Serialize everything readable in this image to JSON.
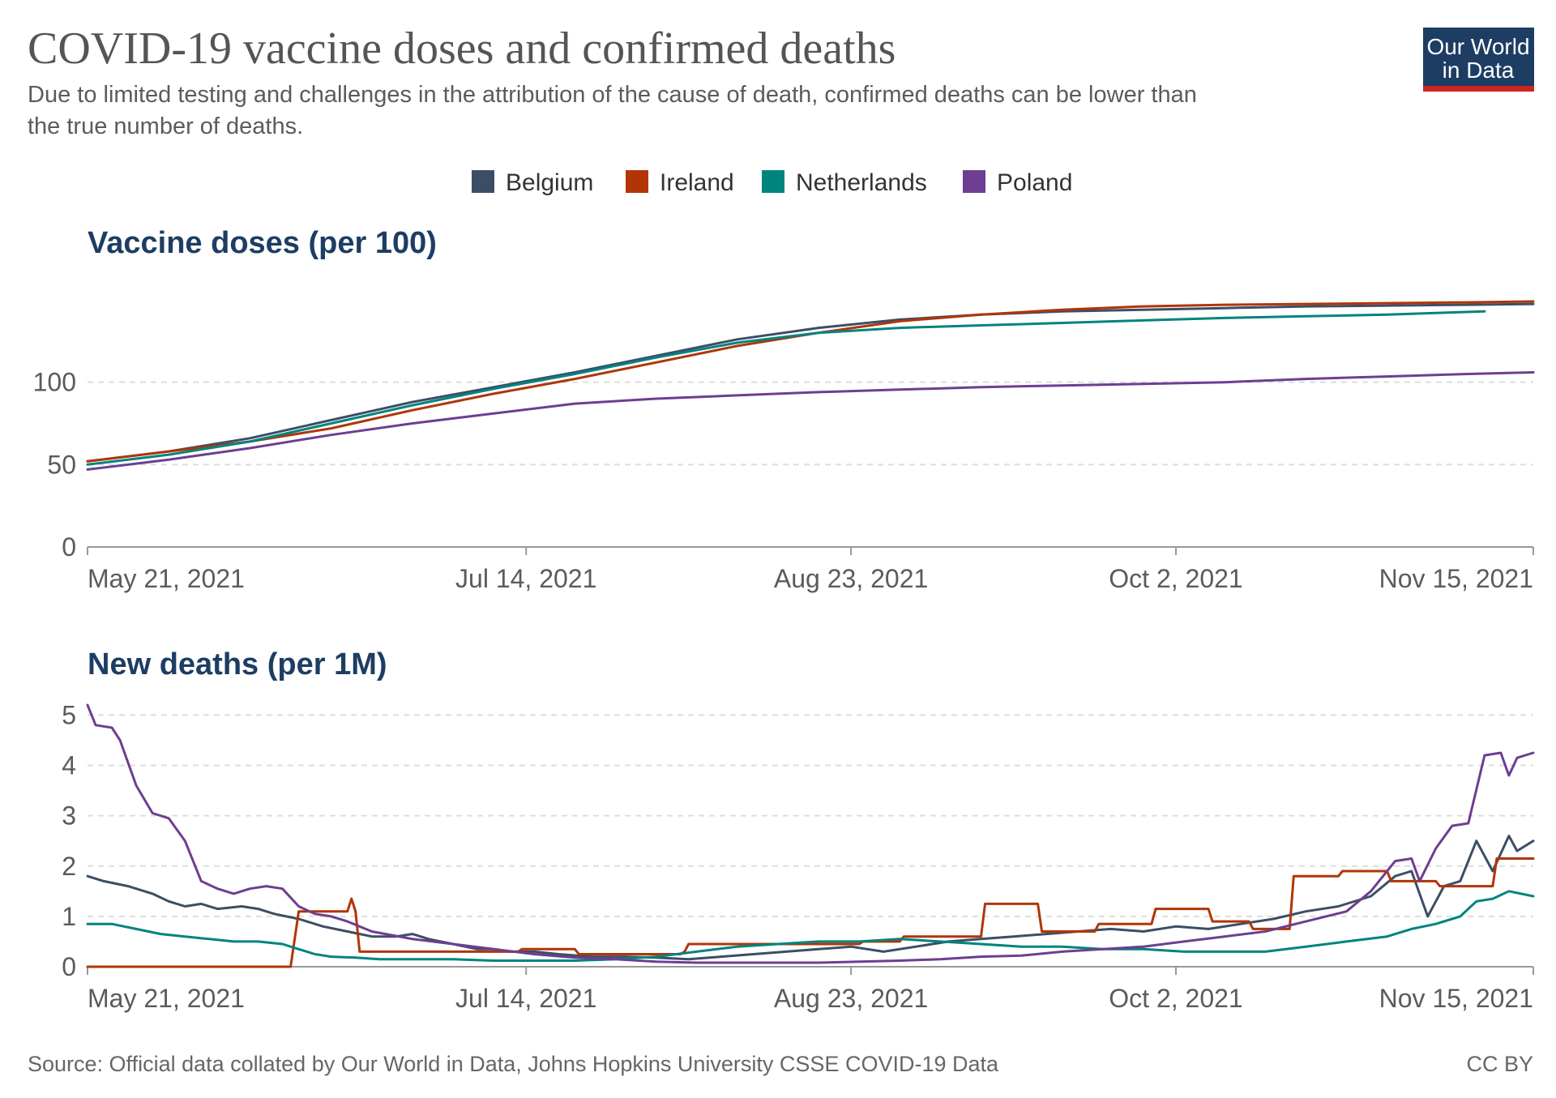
{
  "header": {
    "title": "COVID-19 vaccine doses and confirmed deaths",
    "subtitle_line1": "Due to limited testing and challenges in the attribution of the cause of death, confirmed deaths can be lower than",
    "subtitle_line2": "the true number of deaths."
  },
  "logo": {
    "line1": "Our World",
    "line2": "in Data",
    "bg_color": "#1d3d63",
    "accent_color": "#ce261e"
  },
  "footer": {
    "source": "Source: Official data collated by Our World in Data, Johns Hopkins University CSSE COVID-19 Data",
    "license": "CC BY"
  },
  "legend": [
    {
      "name": "Belgium",
      "color": "#3c4e66"
    },
    {
      "name": "Ireland",
      "color": "#b13507"
    },
    {
      "name": "Netherlands",
      "color": "#00847e"
    },
    {
      "name": "Poland",
      "color": "#6d3e91"
    }
  ],
  "chart_data": [
    {
      "type": "line",
      "title": "Vaccine doses (per 100)",
      "xlabel": "",
      "ylabel": "",
      "x_axis": {
        "start_date": "2021-05-21",
        "end_date": "2021-11-16",
        "tick_labels": [
          "May 21, 2021",
          "Jul 14, 2021",
          "Aug 23, 2021",
          "Oct 2, 2021",
          "Nov 15, 2021"
        ],
        "tick_days": [
          0,
          54,
          94,
          134,
          178
        ]
      },
      "ylim": [
        0,
        150
      ],
      "yticks": [
        0,
        50,
        100
      ],
      "grid": true,
      "series": [
        {
          "name": "Belgium",
          "color": "#3c4e66",
          "x": [
            0,
            10,
            20,
            30,
            40,
            50,
            60,
            70,
            80,
            90,
            100,
            110,
            120,
            130,
            140,
            150,
            160,
            170,
            178
          ],
          "values": [
            52,
            58,
            66,
            77,
            88,
            97,
            106,
            116,
            126,
            133,
            138,
            141,
            143,
            144,
            145,
            146,
            146.5,
            147,
            147.5
          ]
        },
        {
          "name": "Ireland",
          "color": "#b13507",
          "x": [
            0,
            10,
            20,
            30,
            40,
            50,
            60,
            70,
            80,
            90,
            100,
            110,
            120,
            130,
            140,
            150,
            160,
            170,
            178
          ],
          "values": [
            52,
            58,
            64,
            72,
            83,
            93,
            102,
            112,
            122,
            130,
            137,
            141,
            144,
            146,
            147,
            147.5,
            148,
            148.5,
            149
          ]
        },
        {
          "name": "Netherlands",
          "color": "#00847e",
          "x": [
            0,
            10,
            20,
            30,
            40,
            50,
            60,
            70,
            80,
            90,
            100,
            110,
            120,
            130,
            140,
            150,
            160,
            172
          ],
          "values": [
            50,
            56,
            64,
            75,
            86,
            96,
            105,
            115,
            124,
            130,
            133,
            134.5,
            136,
            137.5,
            139,
            140,
            141,
            143
          ]
        },
        {
          "name": "Poland",
          "color": "#6d3e91",
          "x": [
            0,
            10,
            20,
            30,
            40,
            50,
            60,
            70,
            80,
            90,
            100,
            110,
            120,
            130,
            140,
            150,
            160,
            170,
            178
          ],
          "values": [
            47,
            53,
            60,
            68,
            75,
            81,
            87,
            90,
            92,
            94,
            95.5,
            97,
            98,
            99,
            100,
            102,
            103.5,
            105,
            106
          ]
        }
      ]
    },
    {
      "type": "line",
      "title": "New deaths (per 1M)",
      "xlabel": "",
      "ylabel": "",
      "x_axis": {
        "start_date": "2021-05-21",
        "end_date": "2021-11-16",
        "tick_labels": [
          "May 21, 2021",
          "Jul 14, 2021",
          "Aug 23, 2021",
          "Oct 2, 2021",
          "Nov 15, 2021"
        ],
        "tick_days": [
          0,
          54,
          94,
          134,
          178
        ]
      },
      "ylim": [
        0,
        5.2
      ],
      "yticks": [
        0,
        1,
        2,
        3,
        4,
        5
      ],
      "grid": true,
      "series": [
        {
          "name": "Belgium",
          "color": "#3c4e66",
          "x": [
            0,
            2,
            5,
            8,
            10,
            12,
            14,
            16,
            19,
            21,
            23,
            26,
            29,
            32,
            35,
            38,
            40,
            42,
            45,
            48,
            50,
            52,
            55,
            58,
            62,
            66,
            70,
            74,
            78,
            82,
            86,
            90,
            94,
            98,
            102,
            106,
            110,
            114,
            118,
            122,
            126,
            130,
            134,
            138,
            142,
            146,
            150,
            154,
            158,
            161,
            163,
            165,
            167,
            169,
            171,
            173,
            175,
            176,
            178
          ],
          "values": [
            1.8,
            1.7,
            1.6,
            1.45,
            1.3,
            1.2,
            1.25,
            1.15,
            1.2,
            1.15,
            1.05,
            0.95,
            0.8,
            0.7,
            0.6,
            0.6,
            0.65,
            0.55,
            0.45,
            0.35,
            0.35,
            0.3,
            0.3,
            0.25,
            0.2,
            0.2,
            0.18,
            0.15,
            0.2,
            0.25,
            0.3,
            0.35,
            0.4,
            0.3,
            0.4,
            0.5,
            0.55,
            0.6,
            0.65,
            0.7,
            0.75,
            0.7,
            0.8,
            0.75,
            0.85,
            0.95,
            1.1,
            1.2,
            1.4,
            1.8,
            1.9,
            1.0,
            1.6,
            1.7,
            2.5,
            1.9,
            2.6,
            2.3,
            2.5
          ]
        },
        {
          "name": "Ireland",
          "color": "#b13507",
          "x": [
            0,
            25,
            26,
            32,
            32.5,
            33,
            33.5,
            34,
            53,
            53.5,
            60,
            60.5,
            73,
            73.5,
            74,
            95,
            95.5,
            100,
            100.5,
            110,
            110.5,
            117,
            117.5,
            124,
            124.5,
            131,
            131.5,
            138,
            138.5,
            143,
            143.5,
            148,
            148.5,
            154,
            154.5,
            160,
            160.5,
            166,
            166.5,
            173,
            173.5,
            178
          ],
          "values": [
            0,
            0,
            1.1,
            1.1,
            1.35,
            1.1,
            0.3,
            0.3,
            0.3,
            0.35,
            0.35,
            0.25,
            0.25,
            0.3,
            0.45,
            0.45,
            0.5,
            0.5,
            0.6,
            0.6,
            1.25,
            1.25,
            0.7,
            0.7,
            0.85,
            0.85,
            1.15,
            1.15,
            0.9,
            0.9,
            0.75,
            0.75,
            1.8,
            1.8,
            1.9,
            1.9,
            1.7,
            1.7,
            1.6,
            1.6,
            2.15,
            2.15
          ]
        },
        {
          "name": "Netherlands",
          "color": "#00847e",
          "x": [
            0,
            3,
            6,
            9,
            12,
            15,
            18,
            21,
            24,
            26,
            28,
            30,
            33,
            36,
            40,
            45,
            50,
            55,
            60,
            65,
            70,
            75,
            80,
            85,
            90,
            95,
            100,
            105,
            110,
            115,
            120,
            125,
            130,
            135,
            140,
            145,
            150,
            155,
            160,
            163,
            166,
            169,
            171,
            173,
            175,
            178
          ],
          "values": [
            0.85,
            0.85,
            0.75,
            0.65,
            0.6,
            0.55,
            0.5,
            0.5,
            0.45,
            0.35,
            0.25,
            0.2,
            0.18,
            0.15,
            0.15,
            0.15,
            0.12,
            0.12,
            0.12,
            0.15,
            0.2,
            0.3,
            0.4,
            0.45,
            0.5,
            0.5,
            0.55,
            0.5,
            0.45,
            0.4,
            0.4,
            0.35,
            0.35,
            0.3,
            0.3,
            0.3,
            0.4,
            0.5,
            0.6,
            0.75,
            0.85,
            1.0,
            1.3,
            1.35,
            1.5,
            1.4
          ]
        },
        {
          "name": "Poland",
          "color": "#6d3e91",
          "x": [
            0,
            1,
            3,
            4,
            6,
            8,
            10,
            12,
            14,
            16,
            18,
            20,
            22,
            24,
            26,
            28,
            30,
            32,
            35,
            40,
            45,
            50,
            55,
            60,
            65,
            70,
            75,
            80,
            85,
            90,
            95,
            100,
            105,
            110,
            115,
            120,
            125,
            130,
            135,
            140,
            145,
            150,
            155,
            158,
            161,
            163,
            164,
            166,
            168,
            170,
            172,
            174,
            175,
            176,
            178
          ],
          "values": [
            5.2,
            4.8,
            4.75,
            4.5,
            3.6,
            3.05,
            2.95,
            2.5,
            1.7,
            1.55,
            1.45,
            1.55,
            1.6,
            1.55,
            1.2,
            1.05,
            1.0,
            0.9,
            0.7,
            0.55,
            0.45,
            0.35,
            0.25,
            0.18,
            0.15,
            0.1,
            0.08,
            0.08,
            0.08,
            0.08,
            0.1,
            0.12,
            0.15,
            0.2,
            0.22,
            0.3,
            0.35,
            0.4,
            0.5,
            0.6,
            0.7,
            0.9,
            1.1,
            1.5,
            2.1,
            2.15,
            1.7,
            2.35,
            2.8,
            2.85,
            4.2,
            4.25,
            3.8,
            4.15,
            4.25
          ]
        }
      ]
    }
  ]
}
